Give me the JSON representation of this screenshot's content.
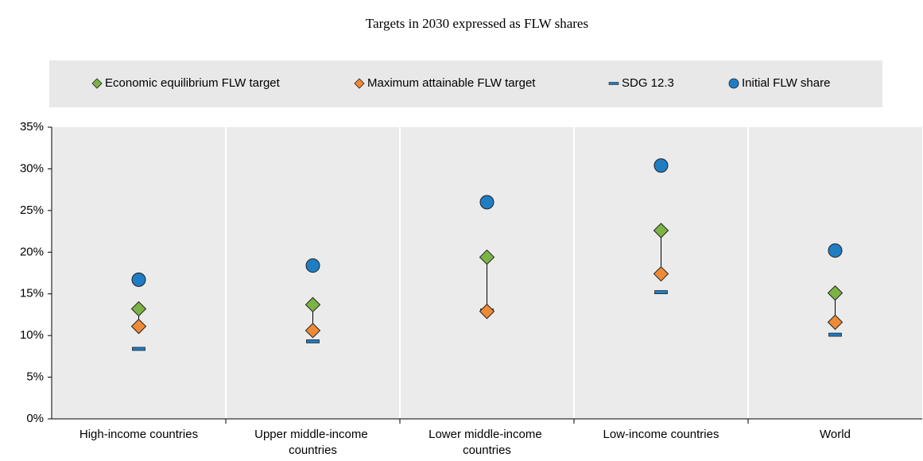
{
  "chart_data": {
    "type": "dot",
    "title": "Targets in 2030 expressed as FLW shares",
    "categories": [
      "High-income countries",
      "Upper middle-income countries",
      "Lower middle-income countries",
      "Low-income countries",
      "World"
    ],
    "series": [
      {
        "name": "Economic equilibrium FLW target",
        "color": "#7bb344",
        "marker": "diamond",
        "values": [
          13.2,
          13.7,
          19.4,
          22.6,
          15.1
        ]
      },
      {
        "name": "Maximum attainable FLW target",
        "color": "#ee8a36",
        "marker": "diamond",
        "values": [
          11.1,
          10.6,
          12.9,
          17.4,
          11.6
        ]
      },
      {
        "name": "SDG 12.3",
        "color": "#1f7dc4",
        "marker": "dash",
        "values": [
          8.4,
          9.3,
          13.0,
          15.2,
          10.1
        ]
      },
      {
        "name": "Initial FLW share",
        "color": "#1f7dc4",
        "marker": "circle",
        "values": [
          16.7,
          18.4,
          26.0,
          30.4,
          20.2
        ]
      }
    ],
    "ylim": [
      0,
      35
    ],
    "yticks": [
      {
        "value": 0,
        "label": "0%"
      },
      {
        "value": 5,
        "label": "5%"
      },
      {
        "value": 10,
        "label": "10%"
      },
      {
        "value": 15,
        "label": "15%"
      },
      {
        "value": 20,
        "label": "20%"
      },
      {
        "value": 25,
        "label": "25%"
      },
      {
        "value": 30,
        "label": "30%"
      },
      {
        "value": 35,
        "label": "35%"
      }
    ],
    "legend": "top"
  }
}
